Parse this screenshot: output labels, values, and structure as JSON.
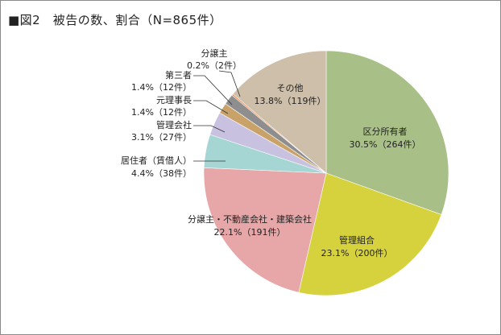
{
  "title": "■図2　被告の数、割合（N=865件）",
  "chart_data": {
    "type": "pie",
    "title": "■図2　被告の数、割合（N=865件）",
    "total_label": "N=865件",
    "slices": [
      {
        "name": "区分所有者",
        "percent": 30.5,
        "count": 264,
        "value_label": "30.5%（264件）",
        "color": "#a9bf88"
      },
      {
        "name": "管理組合",
        "percent": 23.1,
        "count": 200,
        "value_label": "23.1%（200件）",
        "color": "#d6d23e"
      },
      {
        "name": "分譲主・不動産会社・建築会社",
        "percent": 22.1,
        "count": 191,
        "value_label": "22.1%（191件）",
        "color": "#e7a6a7"
      },
      {
        "name": "居住者（賃借人）",
        "percent": 4.4,
        "count": 38,
        "value_label": "4.4%（38件）",
        "color": "#a6d6d3"
      },
      {
        "name": "管理会社",
        "percent": 3.1,
        "count": 27,
        "value_label": "3.1%（27件）",
        "color": "#c9c1e0"
      },
      {
        "name": "元理事長",
        "percent": 1.4,
        "count": 12,
        "value_label": "1.4%（12件）",
        "color": "#c9a26a"
      },
      {
        "name": "第三者",
        "percent": 1.4,
        "count": 12,
        "value_label": "1.4%（12件）",
        "color": "#8e8e8e"
      },
      {
        "name": "分譲主",
        "percent": 0.2,
        "count": 2,
        "value_label": "0.2%（2件）",
        "color": "#e8884e"
      },
      {
        "name": "その他",
        "percent": 13.8,
        "count": 119,
        "value_label": "13.8%（119件）",
        "color": "#cdbfa9"
      }
    ]
  }
}
